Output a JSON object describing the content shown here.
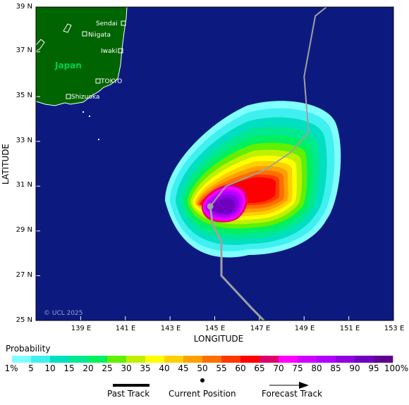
{
  "map": {
    "lat_range": [
      25,
      39
    ],
    "lon_range": [
      137,
      153
    ],
    "y_ticks": [
      "25 N",
      "27 N",
      "29 N",
      "31 N",
      "33 N",
      "35 N",
      "37 N",
      "39 N"
    ],
    "x_ticks": [
      "139 E",
      "141 E",
      "143 E",
      "145 E",
      "147 E",
      "149 E",
      "151 E",
      "153 E"
    ],
    "y_axis_title": "LATITUDE",
    "x_axis_title": "LONGITUDE",
    "land_label": "Japan",
    "copyright": "© UCL 2025",
    "ocean_color": "#0c1a80",
    "land_color": "#006400",
    "track_color": "#a0a0a0"
  },
  "cities": [
    {
      "name": "Sendai"
    },
    {
      "name": "Niigata"
    },
    {
      "name": "Iwaki"
    },
    {
      "name": "TOKYO"
    },
    {
      "name": "Shizuoka"
    }
  ],
  "track": {
    "current_position": {
      "lat": 30.1,
      "lon": 144.8
    },
    "past": [
      {
        "lat": 25,
        "lon": 147.2
      },
      {
        "lat": 25.5,
        "lon": 146.7
      },
      {
        "lat": 27,
        "lon": 145.3
      },
      {
        "lat": 28.5,
        "lon": 145.3
      },
      {
        "lat": 29.3,
        "lon": 144.9
      },
      {
        "lat": 30.1,
        "lon": 144.8
      }
    ],
    "forecast": [
      {
        "lat": 30.1,
        "lon": 144.8
      },
      {
        "lat": 31,
        "lon": 145.5
      },
      {
        "lat": 31.7,
        "lon": 147.2
      },
      {
        "lat": 32.5,
        "lon": 148.4
      },
      {
        "lat": 33.4,
        "lon": 149.2
      },
      {
        "lat": 35.9,
        "lon": 149.0
      },
      {
        "lat": 38.6,
        "lon": 149.5
      },
      {
        "lat": 39,
        "lon": 150.0
      }
    ]
  },
  "probability_scale": {
    "title": "Probability",
    "labels": [
      "1%",
      "5",
      "10",
      "15",
      "20",
      "25",
      "30",
      "35",
      "40",
      "45",
      "50",
      "55",
      "60",
      "65",
      "70",
      "75",
      "80",
      "85",
      "90",
      "95",
      "100%"
    ],
    "colors": [
      "#80ffff",
      "#40f0f0",
      "#00e0c0",
      "#00e890",
      "#00f060",
      "#60f000",
      "#c0f000",
      "#ffff00",
      "#ffd000",
      "#ffa000",
      "#ff7000",
      "#ff3800",
      "#ff0000",
      "#e0006a",
      "#ff00ff",
      "#d000ff",
      "#b000ff",
      "#9000e0",
      "#7000c0",
      "#600090"
    ]
  },
  "legend": {
    "past_track": "Past Track",
    "current_position": "Current Position",
    "forecast_track": "Forecast Track"
  }
}
